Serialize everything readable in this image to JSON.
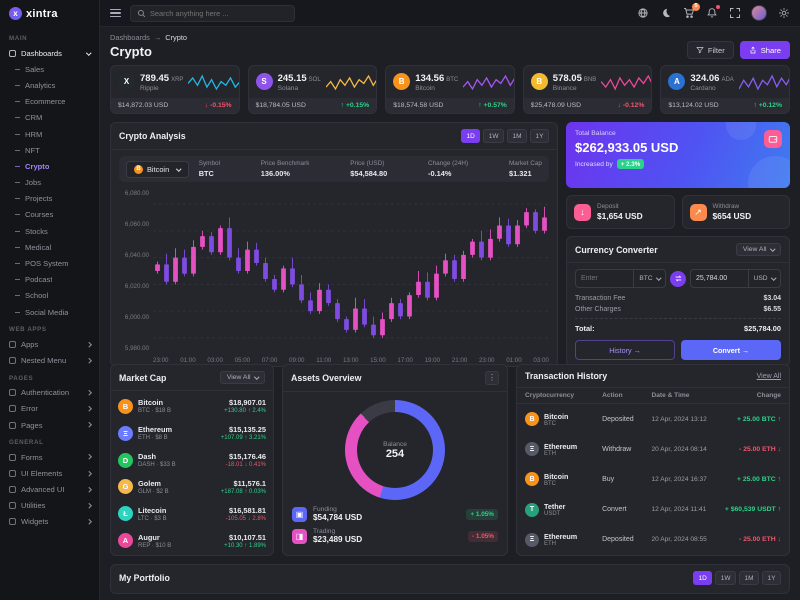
{
  "app": {
    "logo_text": "xintra"
  },
  "header": {
    "search_placeholder": "Search anything here ...",
    "cart_badge": "5"
  },
  "page": {
    "breadcrumb": [
      "Dashboards",
      "Crypto"
    ],
    "breadcrumb_separator": "→",
    "title": "Crypto",
    "filter_label": "Filter",
    "share_label": "Share"
  },
  "sidebar": {
    "sections": [
      {
        "label": "MAIN",
        "items": [
          {
            "label": "Dashboards",
            "type": "parent",
            "open": true
          },
          {
            "label": "Sales",
            "type": "child"
          },
          {
            "label": "Analytics",
            "type": "child"
          },
          {
            "label": "Ecommerce",
            "type": "child"
          },
          {
            "label": "CRM",
            "type": "child"
          },
          {
            "label": "HRM",
            "type": "child"
          },
          {
            "label": "NFT",
            "type": "child"
          },
          {
            "label": "Crypto",
            "type": "child",
            "active": true
          },
          {
            "label": "Jobs",
            "type": "child"
          },
          {
            "label": "Projects",
            "type": "child"
          },
          {
            "label": "Courses",
            "type": "child"
          },
          {
            "label": "Stocks",
            "type": "child"
          },
          {
            "label": "Medical",
            "type": "child"
          },
          {
            "label": "POS System",
            "type": "child"
          },
          {
            "label": "Podcast",
            "type": "child"
          },
          {
            "label": "School",
            "type": "child"
          },
          {
            "label": "Social Media",
            "type": "child"
          }
        ]
      },
      {
        "label": "WEB APPS",
        "items": [
          {
            "label": "Apps",
            "type": "parent"
          },
          {
            "label": "Nested Menu",
            "type": "parent"
          }
        ]
      },
      {
        "label": "PAGES",
        "items": [
          {
            "label": "Authentication",
            "type": "parent"
          },
          {
            "label": "Error",
            "type": "parent"
          },
          {
            "label": "Pages",
            "type": "parent"
          }
        ]
      },
      {
        "label": "GENERAL",
        "items": [
          {
            "label": "Forms",
            "type": "parent"
          },
          {
            "label": "UI Elements",
            "type": "parent"
          },
          {
            "label": "Advanced UI",
            "type": "parent"
          },
          {
            "label": "Utilities",
            "type": "parent"
          },
          {
            "label": "Widgets",
            "type": "parent"
          }
        ]
      }
    ]
  },
  "stat_cards": [
    {
      "amount": "789.45",
      "symbol": "XRP",
      "name": "Ripple",
      "usd": "$14,872.03 USD",
      "change": "-0.15%",
      "dir": "down",
      "icon_bg": "#23292f",
      "glyph": "X",
      "spark_color": "#23b7e5",
      "spark": [
        5,
        8,
        4,
        9,
        3,
        7,
        2,
        6,
        4,
        8,
        3,
        6
      ]
    },
    {
      "amount": "245.15",
      "symbol": "SOL",
      "name": "Solana",
      "usd": "$18,784.05 USD",
      "change": "+0.15%",
      "dir": "up",
      "icon_bg": "#8e54e9",
      "glyph": "S",
      "spark_color": "#f5b849",
      "spark": [
        3,
        6,
        2,
        7,
        4,
        8,
        3,
        7,
        5,
        9,
        4,
        8
      ]
    },
    {
      "amount": "134.56",
      "symbol": "BTC",
      "name": "Bitcoin",
      "usd": "$18,574.58 USD",
      "change": "+0.57%",
      "dir": "up",
      "icon_bg": "#f7931a",
      "glyph": "B",
      "spark_color": "#a855f7",
      "spark": [
        4,
        7,
        3,
        8,
        5,
        9,
        4,
        8,
        6,
        10,
        5,
        9
      ]
    },
    {
      "amount": "578.05",
      "symbol": "BNB",
      "name": "Binance",
      "usd": "$25,478.09 USD",
      "change": "-0.12%",
      "dir": "down",
      "icon_bg": "#f3ba2f",
      "glyph": "B",
      "spark_color": "#ec4899",
      "spark": [
        6,
        3,
        7,
        2,
        8,
        4,
        7,
        3,
        8,
        5,
        9,
        4
      ]
    },
    {
      "amount": "324.06",
      "symbol": "ADA",
      "name": "Cardano",
      "usd": "$13,124.02 USD",
      "change": "+0.12%",
      "dir": "up",
      "icon_bg": "#2a71d0",
      "glyph": "A",
      "spark_color": "#8b5cf6",
      "spark": [
        3,
        7,
        4,
        8,
        3,
        7,
        5,
        9,
        4,
        8,
        5,
        9
      ]
    }
  ],
  "analysis": {
    "title": "Crypto Analysis",
    "ranges": [
      "1D",
      "1W",
      "1M",
      "1Y"
    ],
    "active_range": 0,
    "selector": {
      "label": "Bitcoin"
    },
    "stats": [
      {
        "label": "Symbol",
        "value": "BTC"
      },
      {
        "label": "Price Benchmark",
        "value": "136.00%"
      },
      {
        "label": "Price (USD)",
        "value": "$54,584.80",
        "color": "up"
      },
      {
        "label": "Change (24H)",
        "value": "-0.14%",
        "color": "down"
      },
      {
        "label": "Market Cap",
        "value": "$1.321"
      }
    ]
  },
  "chart_data": {
    "type": "candlestick",
    "title": "Crypto Analysis — Bitcoin (BTC) intraday price",
    "ylabel": "Price (USD)",
    "y_ticks": [
      "6,080.00",
      "6,060.00",
      "6,040.00",
      "6,020.00",
      "6,000.00",
      "5,980.00"
    ],
    "y_tick_values": [
      6080,
      6060,
      6040,
      6020,
      6000,
      5980
    ],
    "y_range": [
      5968,
      6092
    ],
    "x_ticks": [
      "23:00",
      "01:00",
      "03:00",
      "05:00",
      "07:00",
      "09:00",
      "11:00",
      "13:00",
      "15:00",
      "17:00",
      "19:00",
      "21:00",
      "23:00",
      "01:00",
      "03:00"
    ],
    "up_color": "#e551c2",
    "down_color": "#7e4ce0",
    "grid": true,
    "legend_position": "none",
    "candles_open_close": [
      [
        6030,
        6035
      ],
      [
        6035,
        6022
      ],
      [
        6022,
        6040
      ],
      [
        6040,
        6028
      ],
      [
        6028,
        6048
      ],
      [
        6048,
        6056
      ],
      [
        6056,
        6044
      ],
      [
        6044,
        6062
      ],
      [
        6062,
        6040
      ],
      [
        6040,
        6030
      ],
      [
        6030,
        6046
      ],
      [
        6046,
        6036
      ],
      [
        6036,
        6024
      ],
      [
        6024,
        6016
      ],
      [
        6016,
        6032
      ],
      [
        6032,
        6020
      ],
      [
        6020,
        6008
      ],
      [
        6008,
        6000
      ],
      [
        6000,
        6016
      ],
      [
        6016,
        6006
      ],
      [
        6006,
        5994
      ],
      [
        5994,
        5986
      ],
      [
        5986,
        6002
      ],
      [
        6002,
        5990
      ],
      [
        5990,
        5982
      ],
      [
        5982,
        5994
      ],
      [
        5994,
        6006
      ],
      [
        6006,
        5996
      ],
      [
        5996,
        6012
      ],
      [
        6012,
        6022
      ],
      [
        6022,
        6010
      ],
      [
        6010,
        6028
      ],
      [
        6028,
        6038
      ],
      [
        6038,
        6024
      ],
      [
        6024,
        6042
      ],
      [
        6042,
        6052
      ],
      [
        6052,
        6040
      ],
      [
        6040,
        6054
      ],
      [
        6054,
        6064
      ],
      [
        6064,
        6050
      ],
      [
        6050,
        6064
      ],
      [
        6064,
        6074
      ],
      [
        6074,
        6060
      ],
      [
        6060,
        6070
      ]
    ]
  },
  "balance": {
    "label": "Total Balance",
    "amount": "$262,933.05 USD",
    "increase_text": "Increased by",
    "increase_badge": "+ 2.3%"
  },
  "deposit": {
    "label": "Deposit",
    "amount": "$1,654 USD",
    "icon_bg": "#fd5d93",
    "glyph": "↓"
  },
  "withdraw": {
    "label": "Withdraw",
    "amount": "$654 USD",
    "icon_bg": "#fb8a4c",
    "glyph": "↗"
  },
  "converter": {
    "title": "Currency Converter",
    "view_all": "View All",
    "from_placeholder": "Enter",
    "from_currency": "BTC",
    "to_value": "25,784.00",
    "to_currency": "USD",
    "rows": [
      {
        "label": "Transaction Fee",
        "value": "$3.04"
      },
      {
        "label": "Other Charges",
        "value": "$6.55"
      }
    ],
    "total_label": "Total:",
    "total_value": "$25,784.00",
    "history_label": "History →",
    "convert_label": "Convert →"
  },
  "market_cap": {
    "title": "Market Cap",
    "view_all": "View All",
    "coins": [
      {
        "name": "Bitcoin",
        "sub": "BTC · $18 B",
        "price": "$18,907.01",
        "change": "+130.80 ↑ 2.4%",
        "dir": "up",
        "color": "#f7931a",
        "glyph": "B"
      },
      {
        "name": "Ethereum",
        "sub": "ETH · $8 B",
        "price": "$15,135.25",
        "change": "+107.09 ↑ 3.21%",
        "dir": "up",
        "color": "#6b7cff",
        "glyph": "Ξ"
      },
      {
        "name": "Dash",
        "sub": "DASH · $33 B",
        "price": "$15,176.46",
        "change": "-18.01 ↓ 0.41%",
        "dir": "down",
        "color": "#22c55e",
        "glyph": "D"
      },
      {
        "name": "Golem",
        "sub": "GLM · $2 B",
        "price": "$11,576.1",
        "change": "+187.08 ↑ 0.03%",
        "dir": "up",
        "color": "#f5b849",
        "glyph": "G"
      },
      {
        "name": "Litecoin",
        "sub": "LTC · $3 B",
        "price": "$16,581.81",
        "change": "-105.05 ↓ 2.8%",
        "dir": "down",
        "color": "#2dd4bf",
        "glyph": "Ł"
      },
      {
        "name": "Augur",
        "sub": "REP · $10 B",
        "price": "$10,107.51",
        "change": "+10.30 ↑ 1.89%",
        "dir": "up",
        "color": "#ec4899",
        "glyph": "A"
      }
    ]
  },
  "assets": {
    "title": "Assets Overview",
    "center_label": "Balance",
    "center_value": "254",
    "donut_segments": [
      {
        "name": "Funding",
        "color": "#5c67f7",
        "pct": 55
      },
      {
        "name": "Trading",
        "color": "#e551c2",
        "pct": 33
      },
      {
        "name": "Other",
        "color": "#3a3b44",
        "pct": 12
      }
    ],
    "items": [
      {
        "label": "Funding",
        "amount": "$54,784 USD",
        "badge": "+ 1.05%",
        "dir": "up",
        "color": "#5c67f7",
        "glyph": "▣"
      },
      {
        "label": "Trading",
        "amount": "$23,489 USD",
        "badge": "- 1.05%",
        "dir": "down",
        "color": "#e551c2",
        "glyph": "◨"
      }
    ]
  },
  "tx_history": {
    "title": "Transaction History",
    "view_all": "View All",
    "columns": [
      "Cryptocurrency",
      "Action",
      "Date & Time",
      "Change"
    ],
    "rows": [
      {
        "name": "Bitcoin",
        "sub": "BTC",
        "action": "Deposited",
        "date": "12 Apr, 2024 13:12",
        "change": "+ 25.00 BTC ↑",
        "dir": "up",
        "color": "#f7931a",
        "glyph": "B"
      },
      {
        "name": "Ethereum",
        "sub": "ETH",
        "action": "Withdraw",
        "date": "20 Apr, 2024 08:14",
        "change": "- 25.00 ETH ↓",
        "dir": "down",
        "color": "#565a68",
        "glyph": "Ξ"
      },
      {
        "name": "Bitcoin",
        "sub": "BTC",
        "action": "Buy",
        "date": "12 Apr, 2024 16:37",
        "change": "+ 25.00 BTC ↑",
        "dir": "up",
        "color": "#f7931a",
        "glyph": "B"
      },
      {
        "name": "Tether",
        "sub": "USDT",
        "action": "Convert",
        "date": "12 Apr, 2024 11:41",
        "change": "+ $60,539 USDT ↑",
        "dir": "up",
        "color": "#26a17b",
        "glyph": "T"
      },
      {
        "name": "Ethereum",
        "sub": "ETH",
        "action": "Deposited",
        "date": "20 Apr, 2024 08:55",
        "change": "- 25.00 ETH ↓",
        "dir": "down",
        "color": "#565a68",
        "glyph": "Ξ"
      }
    ]
  },
  "portfolio": {
    "title": "My Portfolio",
    "ranges": [
      "1D",
      "1W",
      "1M",
      "1Y"
    ],
    "active_range": 0
  }
}
